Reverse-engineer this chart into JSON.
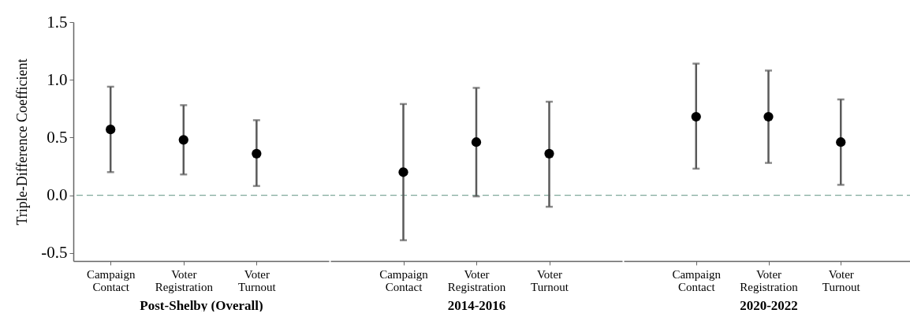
{
  "chart_data": [
    {
      "type": "scatter",
      "xlabel": "Post-Shelby (Overall)",
      "ylabel": "Triple-Difference Coefficient",
      "categories": [
        "Campaign Contact",
        "Voter Registration",
        "Voter Turnout"
      ],
      "values": [
        0.57,
        0.48,
        0.36
      ],
      "errors": [
        [
          0.2,
          0.94
        ],
        [
          0.18,
          0.78
        ],
        [
          0.08,
          0.65
        ]
      ],
      "color": "#000000",
      "marker": "circle",
      "ylim": [
        -0.57,
        1.5
      ],
      "yticks": [
        {
          "value": -0.5,
          "label": "-0.5"
        },
        {
          "value": 0,
          "label": "0.0"
        },
        0.5,
        {
          "value": 1,
          "label": "1.0"
        },
        1.5
      ],
      "ref_lines": [
        {
          "axis": "y",
          "value": 0,
          "label": null,
          "color": "#7fa99b",
          "line_style": "dashed"
        }
      ],
      "grid": false
    },
    {
      "type": "scatter",
      "xlabel": "2014-2016",
      "categories": [
        "Campaign Contact",
        "Voter Registration",
        "Voter Turnout"
      ],
      "values": [
        0.2,
        0.46,
        0.36
      ],
      "errors": [
        [
          -0.39,
          0.79
        ],
        [
          -0.01,
          0.93
        ],
        [
          -0.1,
          0.81
        ]
      ],
      "color": "#000000",
      "marker": "circle",
      "ylim": [
        -0.57,
        1.5
      ],
      "tick_labels": "x",
      "ref_lines": [
        {
          "axis": "y",
          "value": 0,
          "label": null,
          "color": "#7fa99b",
          "line_style": "dashed"
        }
      ],
      "grid": false
    },
    {
      "type": "scatter",
      "xlabel": "2020-2022",
      "categories": [
        "Campaign Contact",
        "Voter Registration",
        "Voter Turnout"
      ],
      "values": [
        0.68,
        0.68,
        0.46
      ],
      "errors": [
        [
          0.23,
          1.14
        ],
        [
          0.28,
          1.08
        ],
        [
          0.09,
          0.83
        ]
      ],
      "color": "#000000",
      "marker": "circle",
      "ylim": [
        -0.57,
        1.5
      ],
      "tick_labels": "x",
      "ref_lines": [
        {
          "axis": "y",
          "value": 0,
          "label": null,
          "color": "#7fa99b",
          "line_style": "dashed"
        }
      ],
      "grid": false
    }
  ]
}
